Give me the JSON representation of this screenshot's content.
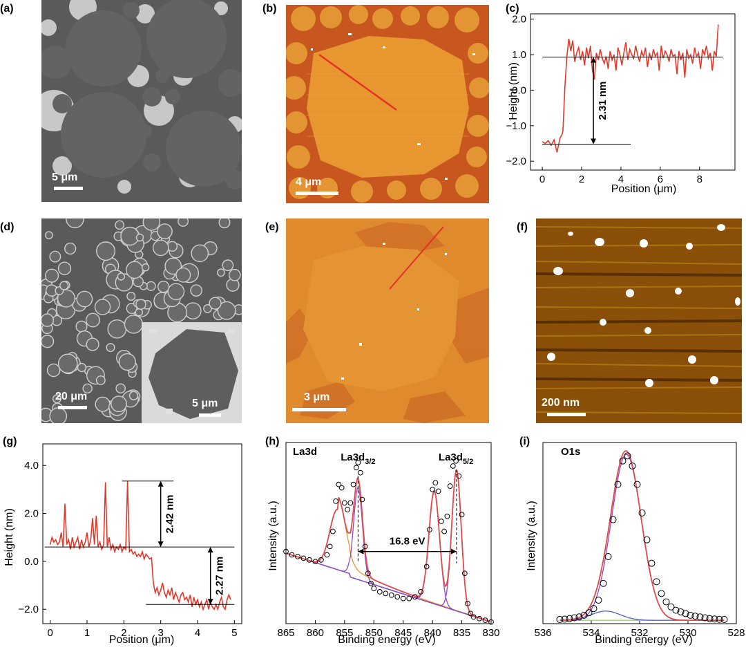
{
  "panel_labels": [
    "(a)",
    "(b)",
    "(c)",
    "(d)",
    "(e)",
    "(f)",
    "(g)",
    "(h)",
    "(i)"
  ],
  "scale_bars": {
    "a": "5 μm",
    "b": "4 μm",
    "d_main": "20 μm",
    "d_inset": "5 μm",
    "e": "3 μm",
    "f": "200 nm"
  },
  "colors": {
    "sem_bg": "#5c5c5c",
    "sem_bright": "#d8d8d8",
    "afm_orange": "#e0892e",
    "afm_dark": "#c4521f",
    "afm_f_bg": "#6a3a06",
    "profile_red": "#e0392b",
    "fit_red": "#e04a4a",
    "peak_orange": "#f0952f",
    "peak_purple": "#8a4cc4",
    "bg_blue": "#4b5db8",
    "bg_green": "#8fd35a"
  },
  "chart_data": [
    {
      "panel": "c",
      "type": "line",
      "xlabel": "Position (μm)",
      "ylabel": "Height (nm)",
      "xlim": [
        -0.6,
        9.8
      ],
      "ylim": [
        -2.25,
        2.15
      ],
      "xticks": [
        0,
        2,
        4,
        6,
        8
      ],
      "yticks": [
        -2.0,
        -1.0,
        0.0,
        1.0,
        2.0
      ],
      "ytick_labels": [
        "−2.0",
        "−1.0",
        "0.0",
        "1.0",
        "2.0"
      ],
      "annotation": "2.31 nm",
      "reference_lines": [
        0.93,
        -1.52
      ],
      "series": [
        {
          "x": [
            0,
            0.15,
            0.3,
            0.45,
            0.6,
            0.75,
            0.9,
            1.0,
            1.05,
            1.15,
            1.25,
            1.35,
            1.45,
            1.55,
            1.65,
            1.75,
            1.85,
            1.95,
            2.05,
            2.15,
            2.25,
            2.35,
            2.45,
            2.55,
            2.65,
            2.75,
            2.85,
            2.95,
            3.05,
            3.15,
            3.25,
            3.35,
            3.45,
            3.55,
            3.65,
            3.75,
            3.85,
            3.95,
            4.05,
            4.15,
            4.25,
            4.35,
            4.45,
            4.55,
            4.65,
            4.75,
            4.85,
            4.95,
            5.05,
            5.15,
            5.25,
            5.35,
            5.45,
            5.55,
            5.65,
            5.75,
            5.85,
            5.95,
            6.05,
            6.15,
            6.25,
            6.35,
            6.45,
            6.55,
            6.65,
            6.75,
            6.85,
            6.95,
            7.05,
            7.15,
            7.25,
            7.35,
            7.45,
            7.55,
            7.65,
            7.75,
            7.85,
            7.95,
            8.05,
            8.15,
            8.25,
            8.35,
            8.45,
            8.55,
            8.65,
            8.75,
            8.85,
            8.95
          ],
          "y": [
            -1.45,
            -1.5,
            -1.42,
            -1.55,
            -1.4,
            -1.75,
            -1.35,
            -1.25,
            -1.15,
            0.1,
            0.95,
            1.45,
            1.1,
            1.4,
            0.8,
            1.05,
            1.2,
            0.85,
            1.1,
            0.7,
            1.2,
            0.9,
            1.25,
            0.55,
            0.3,
            1.05,
            0.85,
            1.15,
            0.9,
            0.75,
            0.95,
            0.6,
            1.1,
            0.85,
            1.0,
            0.55,
            1.2,
            1.0,
            0.7,
            1.05,
            1.35,
            0.85,
            1.15,
            1.0,
            0.9,
            1.25,
            1.0,
            0.8,
            1.1,
            0.95,
            1.2,
            0.65,
            1.05,
            0.85,
            1.15,
            0.95,
            1.05,
            0.55,
            1.25,
            0.9,
            1.1,
            1.0,
            0.8,
            1.15,
            0.95,
            1.0,
            0.45,
            1.1,
            0.85,
            1.05,
            0.35,
            1.15,
            0.9,
            1.0,
            0.75,
            1.2,
            0.95,
            1.05,
            0.6,
            1.15,
            1.0,
            1.25,
            0.9,
            1.05,
            0.55,
            1.1,
            0.95,
            1.85
          ]
        }
      ]
    },
    {
      "panel": "g",
      "type": "line",
      "xlabel": "Position (μm)",
      "ylabel": "Height (nm)",
      "xlim": [
        -0.2,
        5.2
      ],
      "ylim": [
        -2.6,
        4.9
      ],
      "xticks": [
        0,
        1,
        2,
        3,
        4,
        5
      ],
      "yticks": [
        -2.0,
        0.0,
        2.0,
        4.0
      ],
      "ytick_labels": [
        "−2.0",
        "0.0",
        "2.0",
        "4.0"
      ],
      "annotations": [
        "2.42 nm",
        "2.27 nm"
      ],
      "reference_lines": [
        3.35,
        0.6,
        -1.8
      ],
      "series": [
        {
          "x": [
            0,
            0.05,
            0.1,
            0.15,
            0.2,
            0.25,
            0.3,
            0.35,
            0.4,
            0.45,
            0.5,
            0.55,
            0.6,
            0.65,
            0.7,
            0.75,
            0.8,
            0.85,
            0.9,
            0.95,
            1.0,
            1.05,
            1.1,
            1.15,
            1.2,
            1.25,
            1.3,
            1.35,
            1.4,
            1.45,
            1.5,
            1.55,
            1.6,
            1.65,
            1.7,
            1.75,
            1.8,
            1.85,
            1.9,
            1.95,
            2.0,
            2.05,
            2.1,
            2.15,
            2.2,
            2.25,
            2.3,
            2.35,
            2.4,
            2.45,
            2.5,
            2.55,
            2.6,
            2.65,
            2.7,
            2.75,
            2.8,
            2.85,
            2.9,
            2.95,
            3.0,
            3.05,
            3.1,
            3.15,
            3.2,
            3.25,
            3.3,
            3.35,
            3.4,
            3.45,
            3.5,
            3.55,
            3.6,
            3.65,
            3.7,
            3.75,
            3.8,
            3.85,
            3.9,
            3.95,
            4.0,
            4.05,
            4.1,
            4.15,
            4.2,
            4.25,
            4.3,
            4.35,
            4.4,
            4.45,
            4.5,
            4.55,
            4.6,
            4.65,
            4.7,
            4.75,
            4.8,
            4.85,
            4.9
          ],
          "y": [
            0.7,
            1.0,
            0.8,
            0.9,
            0.7,
            0.8,
            1.2,
            0.6,
            2.4,
            0.7,
            0.9,
            0.5,
            1.0,
            0.6,
            0.8,
            1.0,
            0.5,
            0.9,
            0.6,
            0.8,
            1.2,
            0.6,
            0.9,
            1.8,
            0.7,
            1.9,
            0.6,
            0.8,
            0.5,
            0.7,
            3.3,
            0.6,
            1.0,
            0.5,
            0.7,
            0.4,
            0.6,
            0.5,
            0.7,
            0.4,
            0.6,
            0.5,
            3.35,
            0.4,
            0.5,
            0.3,
            0.4,
            0.2,
            0.3,
            0.2,
            0.4,
            0.1,
            0.3,
            0.2,
            0.1,
            0.15,
            -0.9,
            -1.3,
            -1.1,
            -1.4,
            -1.2,
            -0.9,
            -1.3,
            -1.5,
            -1.2,
            -1.4,
            -1.1,
            -1.6,
            -1.3,
            -1.5,
            -1.7,
            -1.4,
            -1.3,
            -1.6,
            -1.5,
            -1.7,
            -1.4,
            -1.9,
            -1.5,
            -1.8,
            -1.6,
            -1.9,
            -1.7,
            -2.0,
            -1.8,
            -1.6,
            -2.0,
            -1.7,
            -1.9,
            -2.0,
            -1.8,
            -2.0,
            -1.7,
            -1.5,
            -1.9,
            -2.0,
            -1.6,
            -1.4,
            -1.6
          ]
        }
      ]
    },
    {
      "panel": "h",
      "type": "scatter",
      "title": "La3d",
      "xlabel": "Binding energy (eV)",
      "ylabel": "Intensity (a.u.)",
      "xlim": [
        865,
        830
      ],
      "xticks": [
        865,
        860,
        855,
        850,
        845,
        840,
        835,
        830
      ],
      "ylim": [
        0,
        1.08
      ],
      "peak_labels": [
        {
          "text": "La3d",
          "sub": "3/2",
          "x_ev": 852.7
        },
        {
          "text": "La3d",
          "sub": "5/2",
          "x_ev": 836.0
        }
      ],
      "annotation": "16.8 eV",
      "splitting_ev": [
        852.7,
        835.9
      ],
      "series": [
        {
          "name": "data",
          "x": [
            865,
            864,
            863,
            862,
            861,
            860,
            859,
            858,
            857.5,
            857,
            856.5,
            856,
            855.5,
            855,
            854.5,
            854,
            853.5,
            853,
            852.7,
            852.3,
            852,
            851.5,
            851,
            850.5,
            850,
            849,
            848,
            847,
            846,
            845,
            844,
            843,
            842,
            841,
            840.5,
            840,
            839.5,
            839,
            838.5,
            838,
            837.5,
            837,
            836.5,
            836,
            835.5,
            835,
            834.5,
            834,
            833.5,
            833,
            832,
            831,
            830
          ],
          "y": [
            0.43,
            0.41,
            0.4,
            0.39,
            0.38,
            0.37,
            0.38,
            0.41,
            0.46,
            0.55,
            0.73,
            0.83,
            0.81,
            0.72,
            0.68,
            0.72,
            0.83,
            0.93,
            0.96,
            0.9,
            0.74,
            0.46,
            0.3,
            0.24,
            0.21,
            0.19,
            0.18,
            0.17,
            0.16,
            0.15,
            0.15,
            0.16,
            0.19,
            0.34,
            0.56,
            0.8,
            0.84,
            0.79,
            0.61,
            0.55,
            0.64,
            0.82,
            0.94,
            0.97,
            0.88,
            0.65,
            0.3,
            0.12,
            0.06,
            0.04,
            0.03,
            0.02,
            0.01
          ]
        }
      ]
    },
    {
      "panel": "i",
      "type": "scatter",
      "title": "O1s",
      "xlabel": "Binding energy (eV)",
      "ylabel": "Intensity (a.u.)",
      "xlim": [
        536,
        528
      ],
      "xticks": [
        536,
        534,
        532,
        530,
        528
      ],
      "ylim": [
        0,
        1.08
      ],
      "series": [
        {
          "name": "data",
          "x": [
            535.3,
            535.1,
            534.9,
            534.7,
            534.5,
            534.3,
            534.1,
            533.9,
            533.7,
            533.5,
            533.3,
            533.1,
            532.9,
            532.7,
            532.5,
            532.3,
            532.1,
            531.9,
            531.7,
            531.5,
            531.3,
            531.1,
            530.9,
            530.7,
            530.5,
            530.3,
            530.1,
            529.9,
            529.7,
            529.5,
            529.3,
            529.1,
            528.9,
            528.7,
            528.5
          ],
          "y": [
            0.025,
            0.027,
            0.03,
            0.035,
            0.04,
            0.05,
            0.065,
            0.09,
            0.14,
            0.24,
            0.4,
            0.62,
            0.83,
            0.97,
            1.0,
            0.94,
            0.83,
            0.66,
            0.5,
            0.36,
            0.25,
            0.18,
            0.13,
            0.1,
            0.08,
            0.07,
            0.06,
            0.05,
            0.045,
            0.04,
            0.035,
            0.03,
            0.028,
            0.026,
            0.025
          ]
        }
      ]
    }
  ]
}
